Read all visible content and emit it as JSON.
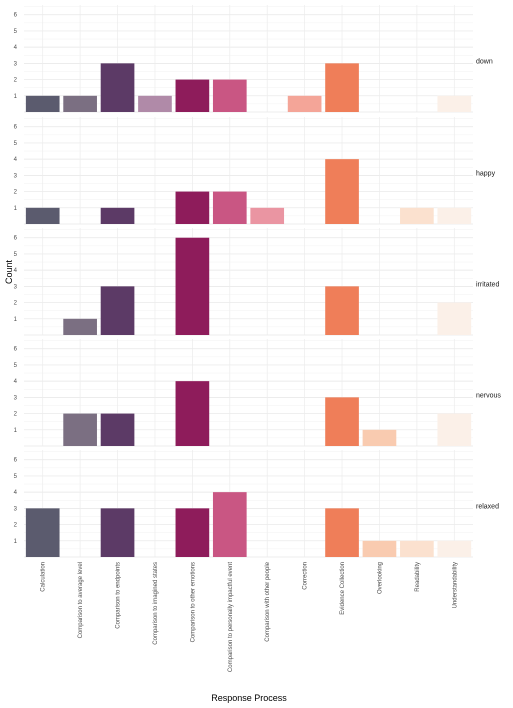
{
  "chart_data": {
    "type": "bar",
    "xlabel": "Response Process",
    "ylabel": "Count",
    "ylim": [
      0,
      6.6
    ],
    "y_ticks": [
      1,
      2,
      3,
      4,
      5,
      6
    ],
    "grid": true,
    "facet_direction": "rows",
    "strip_position": "right",
    "categories": [
      "Calculation",
      "Comparison to average level",
      "Comparison to endpoints",
      "Comparison to imagined states",
      "Comparison to other emotions",
      "Comparison to personally impactful event",
      "Comparison with other people",
      "Correction",
      "Evidence Collection",
      "Overlooking",
      "Readability",
      "Understandability"
    ],
    "colors": [
      "#5b5b6e",
      "#7b6f82",
      "#5c3a66",
      "#b08aa8",
      "#8e1c5b",
      "#c95683",
      "#ea95a2",
      "#f4a598",
      "#ef7e59",
      "#f9cbb0",
      "#fbe1cf",
      "#fbf0e8"
    ],
    "panels": [
      {
        "label": "down",
        "values": [
          1,
          1,
          3,
          1,
          2,
          2,
          0,
          1,
          3,
          0,
          0,
          1
        ]
      },
      {
        "label": "happy",
        "values": [
          1,
          0,
          1,
          0,
          2,
          2,
          1,
          0,
          4,
          0,
          1,
          1
        ]
      },
      {
        "label": "irritated",
        "values": [
          0,
          1,
          3,
          0,
          6,
          0,
          0,
          0,
          3,
          0,
          0,
          2
        ]
      },
      {
        "label": "nervous",
        "values": [
          0,
          2,
          2,
          0,
          4,
          0,
          0,
          0,
          3,
          1,
          0,
          2
        ]
      },
      {
        "label": "relaxed",
        "values": [
          3,
          0,
          3,
          0,
          3,
          4,
          0,
          0,
          3,
          1,
          1,
          1
        ]
      }
    ]
  }
}
